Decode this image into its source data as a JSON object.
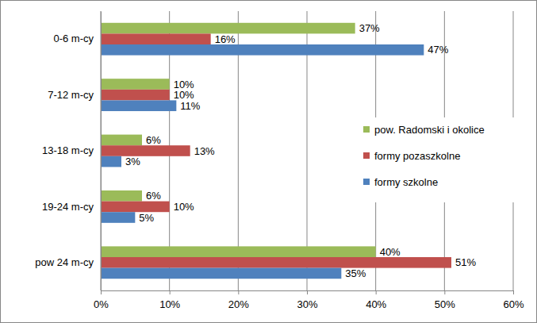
{
  "chart_data": {
    "type": "bar",
    "orientation": "horizontal",
    "categories": [
      "0-6 m-cy",
      "7-12 m-cy",
      "13-18 m-cy",
      "19-24 m-cy",
      "pow 24 m-cy"
    ],
    "series": [
      {
        "name": "pow. Radomski i okolice",
        "color": "#9bbb59",
        "values": [
          37,
          10,
          6,
          6,
          40
        ],
        "value_labels": [
          "37%",
          "10%",
          "6%",
          "6%",
          "40%"
        ]
      },
      {
        "name": "formy pozaszkolne",
        "color": "#c0504d",
        "values": [
          16,
          10,
          13,
          10,
          51
        ],
        "value_labels": [
          "16%",
          "10%",
          "13%",
          "10%",
          "51%"
        ]
      },
      {
        "name": "formy szkolne",
        "color": "#4f81bd",
        "values": [
          47,
          11,
          3,
          5,
          35
        ],
        "value_labels": [
          "47%",
          "11%",
          "3%",
          "5%",
          "35%"
        ]
      }
    ],
    "xlim": [
      0,
      60
    ],
    "xticks": [
      {
        "value": 0,
        "label": "0%"
      },
      {
        "value": 10,
        "label": "10%"
      },
      {
        "value": 20,
        "label": "20%"
      },
      {
        "value": 30,
        "label": "30%"
      },
      {
        "value": 40,
        "label": "40%"
      },
      {
        "value": 50,
        "label": "50%"
      },
      {
        "value": 60,
        "label": "60%"
      }
    ],
    "grid": true,
    "data_labels": true,
    "legend": "right"
  }
}
